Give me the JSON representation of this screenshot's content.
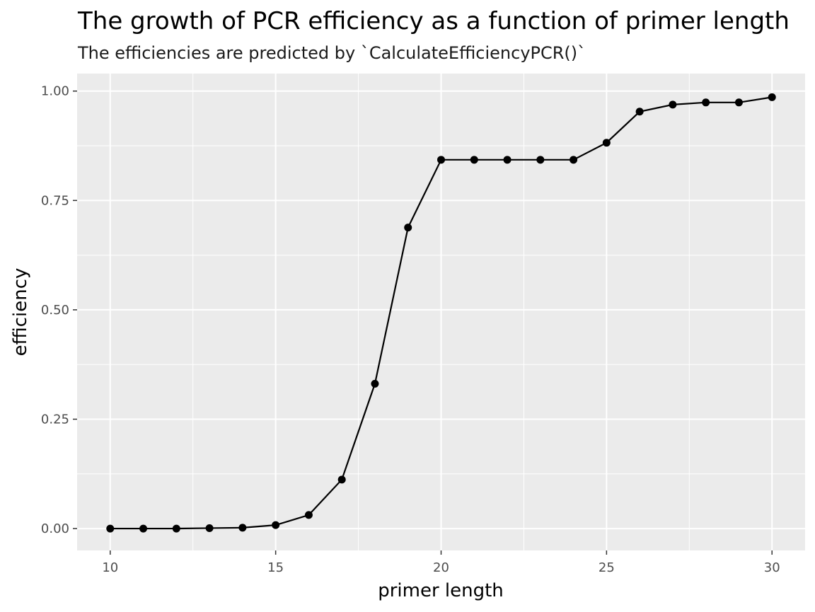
{
  "chart_data": {
    "type": "line",
    "title": "The growth of PCR efficiency as a function of primer length",
    "subtitle": "The efficiencies are predicted by `CalculateEfficiencyPCR()`",
    "xlabel": "primer length",
    "ylabel": "efficiency",
    "xlim": [
      9,
      31
    ],
    "ylim": [
      -0.05,
      1.04
    ],
    "x_ticks": [
      10,
      15,
      20,
      25,
      30
    ],
    "x_tick_labels": [
      "10",
      "15",
      "20",
      "25",
      "30"
    ],
    "y_ticks": [
      0,
      0.25,
      0.5,
      0.75,
      1
    ],
    "y_tick_labels": [
      "0.00",
      "0.25",
      "0.50",
      "0.75",
      "1.00"
    ],
    "grid": true,
    "legend": "none",
    "colors": {
      "panel": "#ebebeb",
      "grid": "#ffffff",
      "line": "#000000",
      "point": "#000000"
    },
    "series": [
      {
        "x": [
          10,
          11,
          12,
          13,
          14,
          15,
          16,
          17,
          18,
          19,
          20,
          21,
          22,
          23,
          24,
          25,
          26,
          27,
          28,
          29,
          30
        ],
        "y": [
          0.0,
          0.0,
          0.0,
          0.001,
          0.002,
          0.008,
          0.031,
          0.112,
          0.331,
          0.688,
          0.843,
          0.843,
          0.843,
          0.843,
          0.843,
          0.882,
          0.953,
          0.969,
          0.974,
          0.974,
          0.986
        ]
      }
    ]
  }
}
